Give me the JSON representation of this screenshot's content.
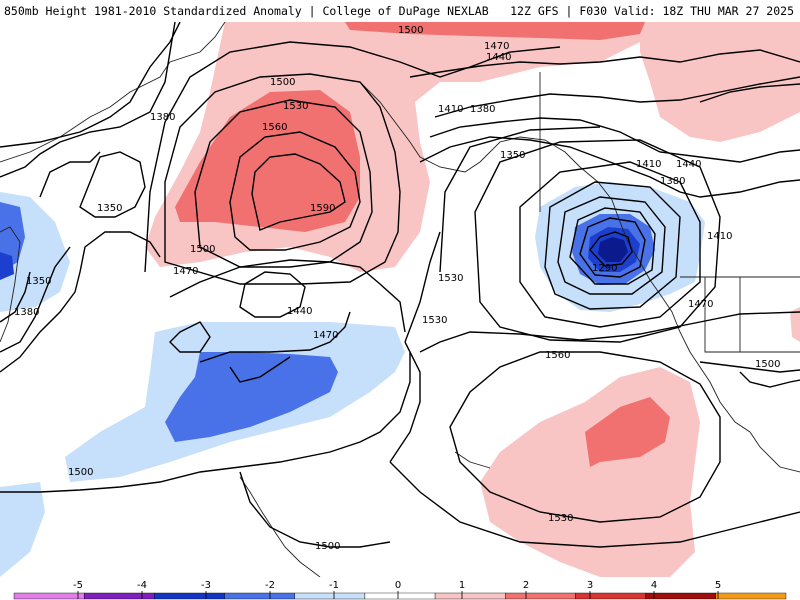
{
  "header": {
    "title": "850mb Height 1981-2010 Standardized Anomaly | College of DuPage NEXLAB",
    "run_info": "12Z GFS | F030 Valid: 18Z THU MAR 27 2025"
  },
  "colors": {
    "background": "#ffffff",
    "anom_neg1": "#c6dffa",
    "anom_neg2": "#4a72e8",
    "anom_neg3": "#1c3fcf",
    "anom_neg4": "#0b1a8c",
    "anom_pos1": "#f9c4c4",
    "anom_pos2": "#f17171",
    "anom_pos3": "#d93535",
    "contour": "#000000",
    "coastline": "#222222"
  },
  "contour_labels": [
    "1500",
    "1470",
    "1440",
    "1410",
    "1380",
    "1350",
    "1290",
    "1500",
    "1530",
    "1560",
    "1590",
    "1380",
    "1350",
    "1380",
    "1350",
    "1470",
    "1500",
    "1440",
    "1470",
    "1530",
    "1530",
    "1560",
    "1530",
    "1500",
    "1500",
    "1410",
    "1440",
    "1410",
    "1380",
    "1470",
    "1500"
  ],
  "colorbar": {
    "ticks": [
      "-5",
      "-4",
      "-3",
      "-2",
      "-1",
      "0",
      "1",
      "2",
      "3",
      "4",
      "5"
    ],
    "colors": [
      "#e27ce8",
      "#7e1fbe",
      "#1534c8",
      "#4a72e8",
      "#c6dffa",
      "#ffffff",
      "#f9c4c4",
      "#f17171",
      "#d93535",
      "#a00d0d",
      "#f59a15"
    ]
  }
}
